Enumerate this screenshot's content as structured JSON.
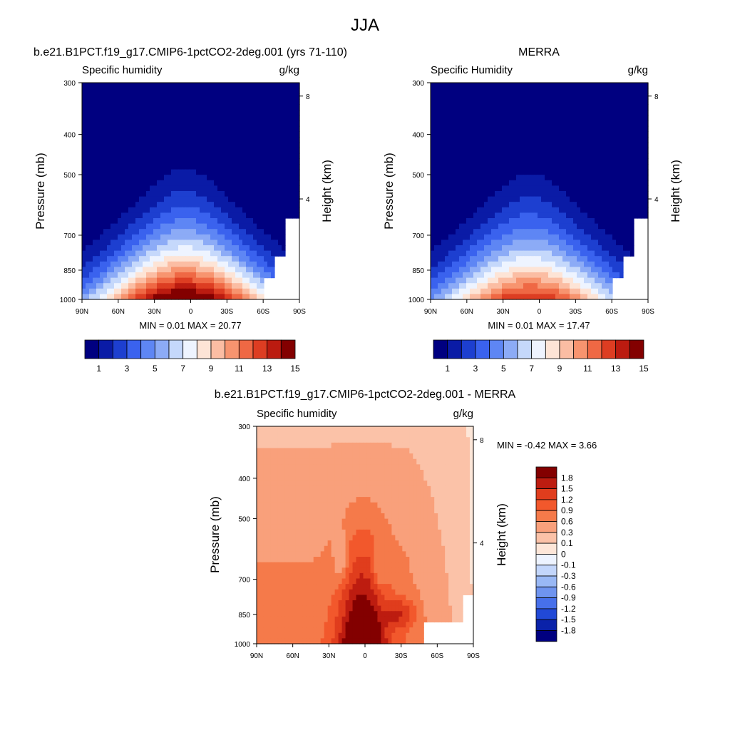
{
  "title": "JJA",
  "chart_data": [
    {
      "type": "contour",
      "case_title": "b.e21.B1PCT.f19_g17.CMIP6-1pctCO2-2deg.001 (yrs 71-110)",
      "variable": "Specific humidity",
      "units": "g/kg",
      "ylabel": "Pressure (mb)",
      "ylabel_right": "Height (km)",
      "pressure_ticks": [
        "300",
        "400",
        "500",
        "700",
        "850",
        "1000"
      ],
      "height_ticks": [
        "8",
        "4"
      ],
      "lat_ticks": [
        "90N",
        "60N",
        "30N",
        "0",
        "30S",
        "60S",
        "90S"
      ],
      "min_label": "MIN =",
      "min_value": "0.01",
      "max_label": "MAX =",
      "max_value": "20.77",
      "peak_value": 20.77,
      "peak_lat": 5,
      "colorbar_labels": [
        "1",
        "3",
        "5",
        "7",
        "9",
        "11",
        "13",
        "15"
      ]
    },
    {
      "type": "contour",
      "case_title": "MERRA",
      "variable": "Specific Humidity",
      "units": "g/kg",
      "ylabel": "Pressure (mb)",
      "ylabel_right": "Height (km)",
      "pressure_ticks": [
        "300",
        "400",
        "500",
        "700",
        "850",
        "1000"
      ],
      "height_ticks": [
        "8",
        "4"
      ],
      "lat_ticks": [
        "90N",
        "60N",
        "30N",
        "0",
        "30S",
        "60S",
        "90S"
      ],
      "min_label": "MIN =",
      "min_value": "0.01",
      "max_label": "MAX =",
      "max_value": "17.47",
      "peak_value": 17.47,
      "peak_lat": 8,
      "colorbar_labels": [
        "1",
        "3",
        "5",
        "7",
        "9",
        "11",
        "13",
        "15"
      ]
    },
    {
      "type": "contour",
      "case_title": "b.e21.B1PCT.f19_g17.CMIP6-1pctCO2-2deg.001 - MERRA",
      "variable": "Specific humidity",
      "units": "g/kg",
      "ylabel": "Pressure (mb)",
      "ylabel_right": "Height (km)",
      "pressure_ticks": [
        "300",
        "400",
        "500",
        "700",
        "850",
        "1000"
      ],
      "height_ticks": [
        "8",
        "4"
      ],
      "lat_ticks": [
        "90N",
        "60N",
        "30N",
        "0",
        "30S",
        "60S",
        "90S"
      ],
      "min_label": "MIN =",
      "min_value": "-0.42",
      "max_label": "MAX =",
      "max_value": "3.66",
      "colorbar_labels": [
        "1.8",
        "1.5",
        "1.2",
        "0.9",
        "0.6",
        "0.3",
        "0.1",
        "0",
        "-0.1",
        "-0.3",
        "-0.6",
        "-0.9",
        "-1.2",
        "-1.5",
        "-1.8"
      ]
    }
  ],
  "colors": {
    "seq_palette": [
      "#000080",
      "#0a1ba6",
      "#1d3fd0",
      "#3a62ee",
      "#5e86f4",
      "#8cabf6",
      "#c5d8fb",
      "#eef4ff",
      "#fde4d6",
      "#fbbda3",
      "#f7946f",
      "#ef6844",
      "#dd3d22",
      "#bb1b10",
      "#830000"
    ],
    "diff_palette": [
      "#830000",
      "#bd1c10",
      "#e03d1d",
      "#f2582c",
      "#f57a4a",
      "#f9a07b",
      "#fbc2a8",
      "#fde6d8",
      "#edf3ff",
      "#c3d6fb",
      "#99b8f5",
      "#6f94ef",
      "#4770ea",
      "#2149d6",
      "#0a22a9",
      "#000080"
    ]
  }
}
